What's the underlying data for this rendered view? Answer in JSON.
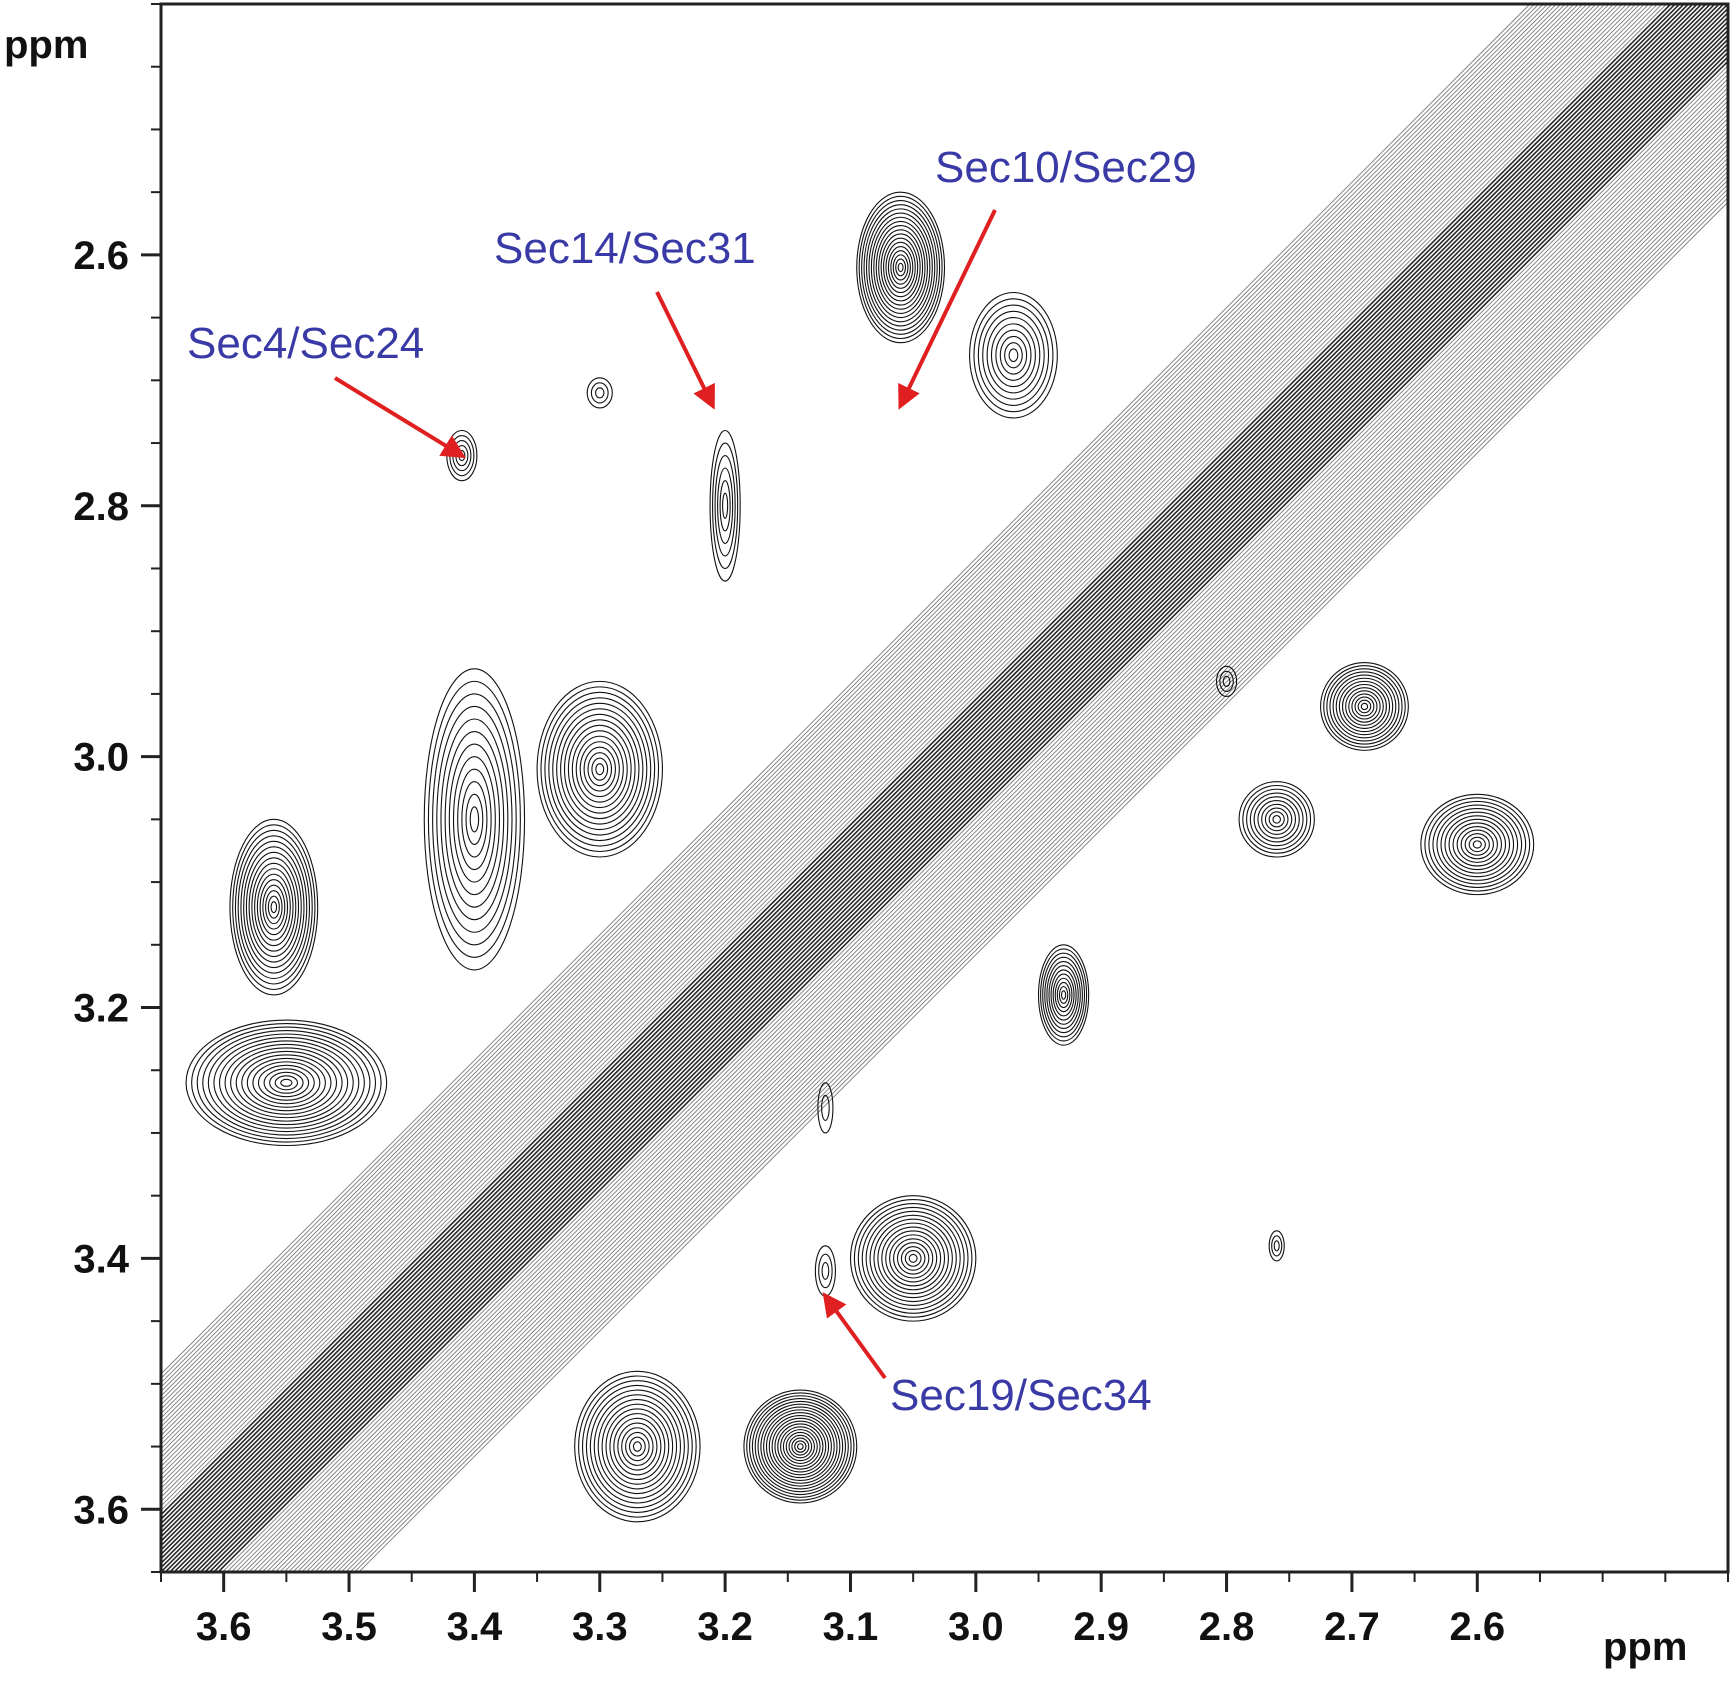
{
  "chart_data": {
    "type": "contour",
    "x_axis": {
      "label": "ppm",
      "range": [
        3.65,
        2.4
      ],
      "reversed": true,
      "ticks": [
        3.6,
        3.5,
        3.4,
        3.3,
        3.2,
        3.1,
        3.0,
        2.9,
        2.8,
        2.7,
        2.6
      ],
      "tick_labels": [
        "3.6",
        "3.5",
        "3.4",
        "3.3",
        "3.2",
        "3.1",
        "3.0",
        "2.9",
        "2.8",
        "2.7",
        "2.6"
      ],
      "minor_step": 0.05
    },
    "y_axis": {
      "label": "ppm",
      "range": [
        2.4,
        3.65
      ],
      "reversed": true,
      "ticks": [
        2.6,
        2.8,
        3.0,
        3.2,
        3.4,
        3.6
      ],
      "tick_labels": [
        "2.6",
        "2.8",
        "3.0",
        "3.2",
        "3.4",
        "3.6"
      ],
      "minor_step": 0.05
    },
    "diagonal": {
      "from": [
        3.65,
        3.65
      ],
      "to": [
        2.4,
        2.4
      ]
    },
    "peaks": [
      {
        "x": 3.41,
        "y": 2.76,
        "sx": 0.012,
        "sy": 0.02,
        "rings": 5
      },
      {
        "x": 3.3,
        "y": 2.71,
        "sx": 0.01,
        "sy": 0.012,
        "rings": 3
      },
      {
        "x": 3.2,
        "y": 2.8,
        "sx": 0.012,
        "sy": 0.06,
        "rings": 6
      },
      {
        "x": 3.06,
        "y": 2.61,
        "sx": 0.035,
        "sy": 0.06,
        "rings": 18
      },
      {
        "x": 2.97,
        "y": 2.68,
        "sx": 0.035,
        "sy": 0.05,
        "rings": 10
      },
      {
        "x": 3.3,
        "y": 3.01,
        "sx": 0.05,
        "sy": 0.07,
        "rings": 16
      },
      {
        "x": 3.4,
        "y": 3.05,
        "sx": 0.04,
        "sy": 0.12,
        "rings": 12
      },
      {
        "x": 3.56,
        "y": 3.12,
        "sx": 0.035,
        "sy": 0.07,
        "rings": 16
      },
      {
        "x": 3.55,
        "y": 3.26,
        "sx": 0.08,
        "sy": 0.05,
        "rings": 18
      },
      {
        "x": 3.27,
        "y": 3.55,
        "sx": 0.05,
        "sy": 0.06,
        "rings": 16
      },
      {
        "x": 3.14,
        "y": 3.55,
        "sx": 0.045,
        "sy": 0.045,
        "rings": 20
      },
      {
        "x": 3.05,
        "y": 3.4,
        "sx": 0.05,
        "sy": 0.05,
        "rings": 16
      },
      {
        "x": 2.69,
        "y": 2.96,
        "sx": 0.035,
        "sy": 0.035,
        "rings": 14
      },
      {
        "x": 2.76,
        "y": 3.05,
        "sx": 0.03,
        "sy": 0.03,
        "rings": 10
      },
      {
        "x": 2.6,
        "y": 3.07,
        "sx": 0.045,
        "sy": 0.04,
        "rings": 14
      },
      {
        "x": 2.93,
        "y": 3.19,
        "sx": 0.02,
        "sy": 0.04,
        "rings": 12
      },
      {
        "x": 2.76,
        "y": 3.39,
        "sx": 0.006,
        "sy": 0.012,
        "rings": 3
      },
      {
        "x": 2.8,
        "y": 2.94,
        "sx": 0.008,
        "sy": 0.012,
        "rings": 3
      },
      {
        "x": 3.12,
        "y": 3.41,
        "sx": 0.008,
        "sy": 0.02,
        "rings": 3
      },
      {
        "x": 3.12,
        "y": 3.28,
        "sx": 0.006,
        "sy": 0.02,
        "rings": 2
      }
    ],
    "annotations": [
      {
        "text": "Sec4/Sec24",
        "x": 3.41,
        "y": 2.76
      },
      {
        "text": "Sec14/Sec31",
        "x": 3.21,
        "y": 2.72
      },
      {
        "text": "Sec10/Sec29",
        "x": 3.06,
        "y": 2.72
      },
      {
        "text": "Sec19/Sec34",
        "x": 3.12,
        "y": 3.43
      }
    ],
    "colors": {
      "contour": "#111111",
      "annotation_text": "#3a3aa6",
      "arrow": "#e02020"
    }
  }
}
